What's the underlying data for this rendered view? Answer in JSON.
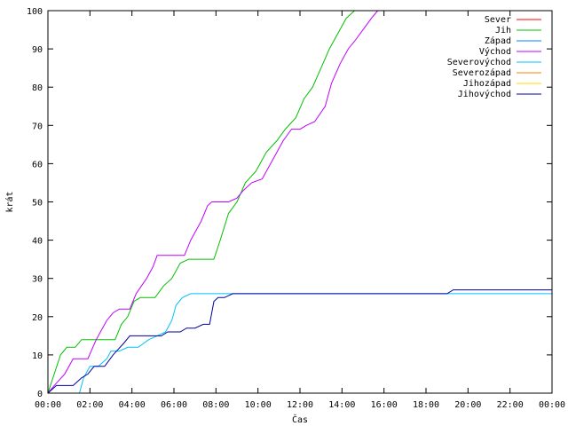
{
  "chart_data": {
    "type": "line",
    "xlabel": "Čas",
    "ylabel": "krát",
    "xlim": [
      0,
      24
    ],
    "ylim": [
      0,
      100
    ],
    "x_ticks": [
      {
        "value": 0,
        "label": "00:00"
      },
      {
        "value": 2,
        "label": "02:00"
      },
      {
        "value": 4,
        "label": "04:00"
      },
      {
        "value": 6,
        "label": "06:00"
      },
      {
        "value": 8,
        "label": "08:00"
      },
      {
        "value": 10,
        "label": "10:00"
      },
      {
        "value": 12,
        "label": "12:00"
      },
      {
        "value": 14,
        "label": "14:00"
      },
      {
        "value": 16,
        "label": "16:00"
      },
      {
        "value": 18,
        "label": "18:00"
      },
      {
        "value": 20,
        "label": "20:00"
      },
      {
        "value": 22,
        "label": "22:00"
      },
      {
        "value": 24,
        "label": "00:00"
      }
    ],
    "y_ticks": [
      0,
      10,
      20,
      30,
      40,
      50,
      60,
      70,
      80,
      90,
      100
    ],
    "grid": false,
    "legend_position": "top-right",
    "series": [
      {
        "name": "Sever",
        "color": "#ff0000",
        "points": []
      },
      {
        "name": "Jih",
        "color": "#00c000",
        "points": [
          [
            0,
            0
          ],
          [
            0.3,
            5
          ],
          [
            0.6,
            10
          ],
          [
            0.9,
            12
          ],
          [
            1.3,
            12
          ],
          [
            1.6,
            14
          ],
          [
            2.3,
            14
          ],
          [
            3.2,
            14
          ],
          [
            3.5,
            18
          ],
          [
            3.8,
            20
          ],
          [
            4.1,
            24
          ],
          [
            4.4,
            25
          ],
          [
            5.1,
            25
          ],
          [
            5.5,
            28
          ],
          [
            5.9,
            30
          ],
          [
            6.3,
            34
          ],
          [
            6.7,
            35
          ],
          [
            7.5,
            35
          ],
          [
            7.9,
            35
          ],
          [
            8.2,
            40
          ],
          [
            8.6,
            47
          ],
          [
            9.0,
            50
          ],
          [
            9.4,
            55
          ],
          [
            9.9,
            58
          ],
          [
            10.4,
            63
          ],
          [
            10.9,
            66
          ],
          [
            11.3,
            69
          ],
          [
            11.8,
            72
          ],
          [
            12.2,
            77
          ],
          [
            12.6,
            80
          ],
          [
            13.0,
            85
          ],
          [
            13.4,
            90
          ],
          [
            13.8,
            94
          ],
          [
            14.2,
            98
          ],
          [
            14.6,
            100
          ]
        ]
      },
      {
        "name": "Západ",
        "color": "#0080ff",
        "points": []
      },
      {
        "name": "Východ",
        "color": "#c000ff",
        "points": [
          [
            0,
            0
          ],
          [
            0.3,
            2
          ],
          [
            0.8,
            5
          ],
          [
            1.2,
            9
          ],
          [
            1.9,
            9
          ],
          [
            2.3,
            14
          ],
          [
            2.8,
            19
          ],
          [
            3.1,
            21
          ],
          [
            3.4,
            22
          ],
          [
            3.9,
            22
          ],
          [
            4.2,
            26
          ],
          [
            4.7,
            30
          ],
          [
            5.0,
            33
          ],
          [
            5.2,
            36
          ],
          [
            6.5,
            36
          ],
          [
            6.8,
            40
          ],
          [
            7.3,
            45
          ],
          [
            7.6,
            49
          ],
          [
            7.8,
            50
          ],
          [
            8.6,
            50
          ],
          [
            9.0,
            51
          ],
          [
            9.3,
            53
          ],
          [
            9.7,
            55
          ],
          [
            10.2,
            56
          ],
          [
            10.6,
            60
          ],
          [
            10.9,
            63
          ],
          [
            11.2,
            66
          ],
          [
            11.6,
            69
          ],
          [
            12.0,
            69
          ],
          [
            12.3,
            70
          ],
          [
            12.7,
            71
          ],
          [
            13.2,
            75
          ],
          [
            13.5,
            81
          ],
          [
            13.9,
            86
          ],
          [
            14.3,
            90
          ],
          [
            14.6,
            92
          ],
          [
            15.0,
            95
          ],
          [
            15.4,
            98
          ],
          [
            15.7,
            100
          ]
        ]
      },
      {
        "name": "Severovýchod",
        "color": "#00c0ff",
        "points": [
          [
            1.5,
            0
          ],
          [
            1.7,
            4
          ],
          [
            2.0,
            7
          ],
          [
            2.4,
            7
          ],
          [
            2.8,
            9
          ],
          [
            3.0,
            11
          ],
          [
            3.4,
            11
          ],
          [
            3.8,
            12
          ],
          [
            4.3,
            12
          ],
          [
            4.8,
            14
          ],
          [
            5.2,
            15
          ],
          [
            5.6,
            16
          ],
          [
            5.9,
            19
          ],
          [
            6.1,
            23
          ],
          [
            6.4,
            25
          ],
          [
            6.8,
            26
          ],
          [
            9.0,
            26
          ],
          [
            16.0,
            26
          ],
          [
            20.0,
            26
          ],
          [
            24.0,
            26
          ]
        ]
      },
      {
        "name": "Severozápad",
        "color": "#ff8000",
        "points": []
      },
      {
        "name": "Jihozápad",
        "color": "#ffd700",
        "points": []
      },
      {
        "name": "Jihovýchod",
        "color": "#0000a0",
        "points": [
          [
            0,
            0
          ],
          [
            0.4,
            2
          ],
          [
            0.8,
            2
          ],
          [
            1.2,
            2
          ],
          [
            1.6,
            4
          ],
          [
            1.9,
            5
          ],
          [
            2.2,
            7
          ],
          [
            2.7,
            7
          ],
          [
            3.1,
            10
          ],
          [
            3.6,
            13
          ],
          [
            3.9,
            15
          ],
          [
            4.4,
            15
          ],
          [
            5.4,
            15
          ],
          [
            5.7,
            16
          ],
          [
            6.3,
            16
          ],
          [
            6.6,
            17
          ],
          [
            7.0,
            17
          ],
          [
            7.4,
            18
          ],
          [
            7.7,
            18
          ],
          [
            7.9,
            24
          ],
          [
            8.1,
            25
          ],
          [
            8.4,
            25
          ],
          [
            8.8,
            26
          ],
          [
            12.0,
            26
          ],
          [
            16.0,
            26
          ],
          [
            19.0,
            26
          ],
          [
            19.3,
            27
          ],
          [
            24.0,
            27
          ]
        ]
      }
    ]
  }
}
